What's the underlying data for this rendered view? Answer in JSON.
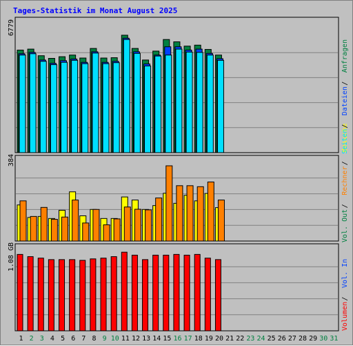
{
  "title": "Tages-Statistik im Monat August 2025",
  "colors": {
    "title": "#0000FF",
    "background": "#C0C0C0",
    "panel_border": "#000000",
    "grid": "#808080",
    "hits": "#008040",
    "files": "#0040FF",
    "pages": "#00E0FF",
    "visits": "#FFFF00",
    "sites": "#FF8000",
    "kbytes": "#FF0000",
    "kbytes_in": "#0040FF",
    "kbytes_out": "#008040",
    "weekday_label": "#000000",
    "weekend_label": "#008040",
    "legend_sep": "#000000"
  },
  "chart_data": [
    {
      "type": "bar",
      "panel": "requests",
      "ymax_label": "6779",
      "ymax": 6779,
      "categories": [
        "1",
        "2",
        "3",
        "4",
        "5",
        "6",
        "7",
        "8",
        "9",
        "10",
        "11",
        "12",
        "13",
        "14",
        "15",
        "16",
        "17",
        "18",
        "19",
        "20",
        "21",
        "22",
        "23",
        "24",
        "25",
        "26",
        "27",
        "28",
        "29",
        "30",
        "31"
      ],
      "series": [
        {
          "name": "Anfragen",
          "color_key": "hits",
          "values": [
            6100,
            6130,
            5930,
            5850,
            5900,
            5950,
            5860,
            6150,
            5860,
            5870,
            6550,
            6150,
            5800,
            6070,
            6420,
            6350,
            6220,
            6250,
            6120,
            5950,
            null,
            null,
            null,
            null,
            null,
            null,
            null,
            null,
            null,
            null,
            null
          ]
        },
        {
          "name": "Dateien",
          "color_key": "files",
          "values": [
            5990,
            6030,
            5800,
            5700,
            5780,
            5830,
            5730,
            6050,
            5730,
            5760,
            6460,
            6050,
            5680,
            5950,
            6200,
            6200,
            6100,
            6130,
            6000,
            5840,
            null,
            null,
            null,
            null,
            null,
            null,
            null,
            null,
            null,
            null,
            null
          ]
        },
        {
          "name": "Seiten",
          "color_key": "pages",
          "values": [
            5950,
            5990,
            5760,
            5660,
            5730,
            5790,
            5690,
            6010,
            5690,
            5720,
            6420,
            6000,
            5620,
            5920,
            5950,
            6130,
            6040,
            6030,
            5950,
            5790,
            null,
            null,
            null,
            null,
            null,
            null,
            null,
            null,
            null,
            null,
            null
          ]
        }
      ]
    },
    {
      "type": "bar",
      "panel": "visits",
      "ymax_label": "384",
      "ymax": 384,
      "categories": [
        "1",
        "2",
        "3",
        "4",
        "5",
        "6",
        "7",
        "8",
        "9",
        "10",
        "11",
        "12",
        "13",
        "14",
        "15",
        "16",
        "17",
        "18",
        "19",
        "20",
        "21",
        "22",
        "23",
        "24",
        "25",
        "26",
        "27",
        "28",
        "29",
        "30",
        "31"
      ],
      "series": [
        {
          "name": "Besuche",
          "color_key": "visits",
          "values": [
            176,
            115,
            120,
            110,
            150,
            240,
            123,
            154,
            110,
            110,
            215,
            200,
            154,
            173,
            233,
            184,
            223,
            196,
            232,
            163,
            null,
            null,
            null,
            null,
            null,
            null,
            null,
            null,
            null,
            null,
            null
          ]
        },
        {
          "name": "Rechner",
          "color_key": "sites",
          "values": [
            196,
            120,
            164,
            106,
            117,
            200,
            88,
            154,
            79,
            108,
            166,
            155,
            152,
            210,
            367,
            270,
            270,
            265,
            288,
            200,
            null,
            null,
            null,
            null,
            null,
            null,
            null,
            null,
            null,
            null,
            null
          ]
        }
      ]
    },
    {
      "type": "bar",
      "panel": "volume",
      "ymax_label": "1.08 GB",
      "ymax": 1.08,
      "unit": "GB",
      "categories": [
        "1",
        "2",
        "3",
        "4",
        "5",
        "6",
        "7",
        "8",
        "9",
        "10",
        "11",
        "12",
        "13",
        "14",
        "15",
        "16",
        "17",
        "18",
        "19",
        "20",
        "21",
        "22",
        "23",
        "24",
        "25",
        "26",
        "27",
        "28",
        "29",
        "30",
        "31"
      ],
      "series": [
        {
          "name": "Volumen",
          "color_key": "kbytes",
          "values": [
            1.03,
            1.0,
            0.98,
            0.96,
            0.96,
            0.96,
            0.95,
            0.97,
            0.98,
            1.0,
            1.06,
            1.02,
            0.96,
            1.02,
            1.02,
            1.03,
            1.02,
            1.03,
            0.98,
            0.96,
            null,
            null,
            null,
            null,
            null,
            null,
            null,
            null,
            null,
            null,
            null
          ]
        }
      ]
    }
  ],
  "weekend_days": [
    "2",
    "3",
    "9",
    "10",
    "16",
    "17",
    "23",
    "24",
    "30",
    "31"
  ],
  "legend_top": [
    {
      "text": "Anfragen",
      "color_key": "hits"
    },
    {
      "text": "Dateien",
      "color_key": "files"
    },
    {
      "text": "Seiten",
      "color_key": "pages"
    }
  ],
  "legend_mid": [
    {
      "text": "Besuche",
      "color_key": "visits"
    },
    {
      "text": "Rechner",
      "color_key": "sites"
    },
    {
      "text": "Vol. Out",
      "color_key": "kbytes_out"
    }
  ],
  "legend_bottom": [
    {
      "text": "Vol. In",
      "color_key": "kbytes_in"
    },
    {
      "text": "Volumen",
      "color_key": "kbytes"
    }
  ],
  "legend_sep": "/"
}
